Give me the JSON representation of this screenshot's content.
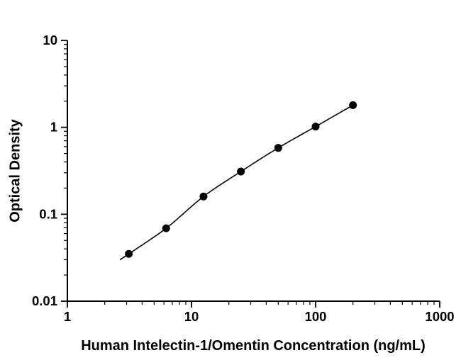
{
  "chart_data": {
    "type": "scatter",
    "title": "",
    "xlabel": "Human Intelectin-1/Omentin Concentration (ng/mL)",
    "ylabel": "Optical Density",
    "x_scale": "log",
    "y_scale": "log",
    "xlim": [
      1,
      1000
    ],
    "ylim": [
      0.01,
      10
    ],
    "x_ticks": [
      1,
      10,
      100,
      1000
    ],
    "y_ticks": [
      0.01,
      0.1,
      1,
      10
    ],
    "grid": false,
    "legend": "none",
    "marker_color": "#000000",
    "line_color": "#000000",
    "background": "#ffffff",
    "curve_through_points": true,
    "points": [
      {
        "x": 3.125,
        "y": 0.035
      },
      {
        "x": 6.25,
        "y": 0.069
      },
      {
        "x": 12.5,
        "y": 0.16
      },
      {
        "x": 25,
        "y": 0.31
      },
      {
        "x": 50,
        "y": 0.58
      },
      {
        "x": 100,
        "y": 1.02
      },
      {
        "x": 200,
        "y": 1.8
      }
    ]
  }
}
